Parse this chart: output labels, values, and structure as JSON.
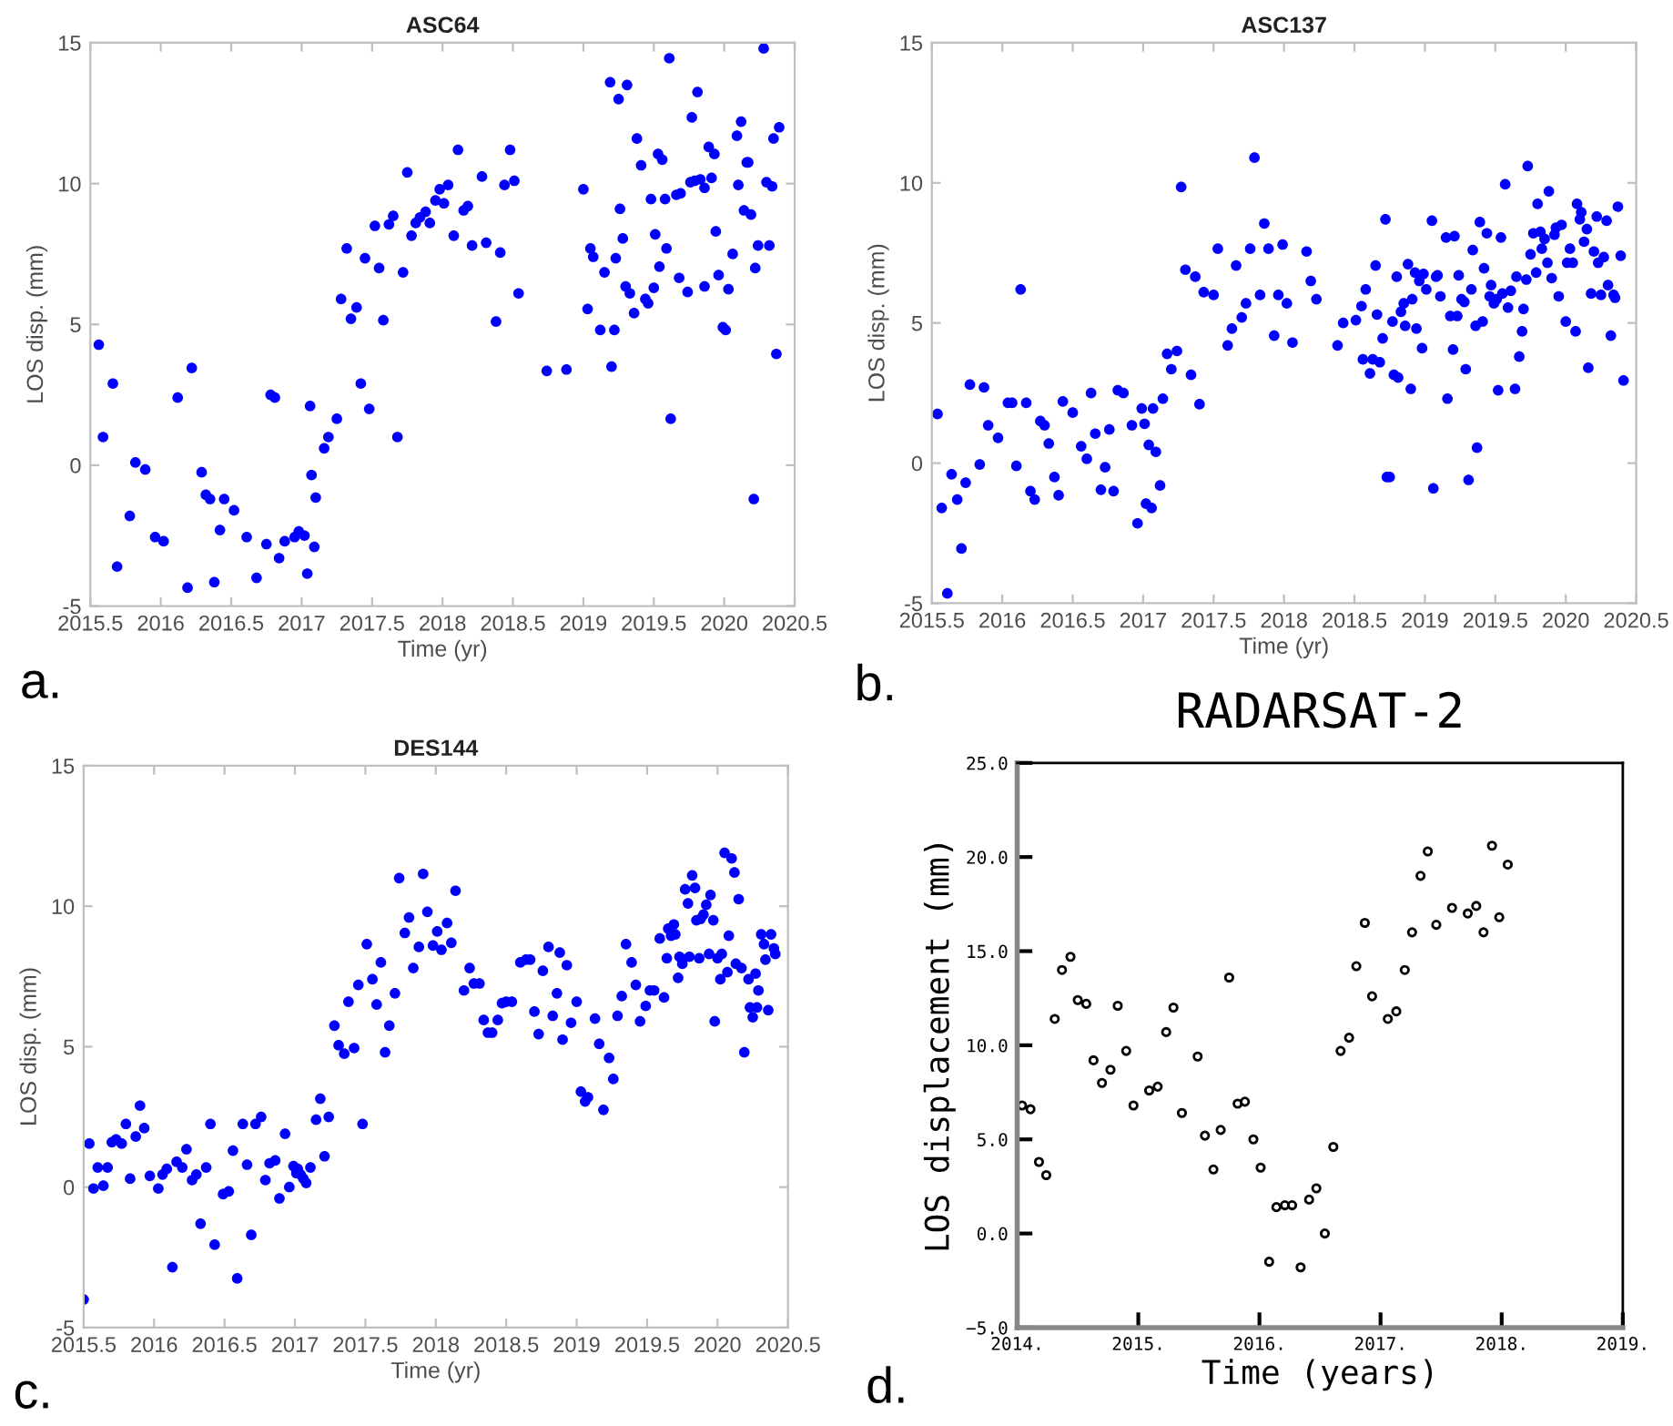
{
  "chart_data": [
    {
      "type": "scatter",
      "title": "ASC64",
      "xlabel": "Time (yr)",
      "ylabel": "LOS disp. (mm)",
      "annotations": [
        "a."
      ],
      "marker": "circle",
      "grid": false,
      "xlim": [
        2015.5,
        2020.5
      ],
      "ylim": [
        -5,
        15
      ],
      "xticks": [
        2015.5,
        2016,
        2016.5,
        2017,
        2017.5,
        2018,
        2018.5,
        2019,
        2019.5,
        2020,
        2020.5
      ],
      "yticks": [
        -5,
        0,
        5,
        10,
        15
      ],
      "series": [
        {
          "color": "#0000ff",
          "x": [
            2015.56,
            2015.59,
            2015.66,
            2015.69,
            2015.78,
            2015.82,
            2015.89,
            2015.96,
            2016.02,
            2016.12,
            2016.19,
            2016.22,
            2016.29,
            2016.32,
            2016.35,
            2016.38,
            2016.42,
            2016.45,
            2016.52,
            2016.61,
            2016.68,
            2016.75,
            2016.78,
            2016.81,
            2016.84,
            2016.88,
            2016.95,
            2016.98,
            2017.02,
            2017.04,
            2017.06,
            2017.07,
            2017.09,
            2017.1,
            2017.16,
            2017.19,
            2017.25,
            2017.28,
            2017.32,
            2017.35,
            2017.39,
            2017.42,
            2017.45,
            2017.48,
            2017.52,
            2017.55,
            2017.58,
            2017.62,
            2017.65,
            2017.68,
            2017.72,
            2017.75,
            2017.78,
            2017.81,
            2017.84,
            2017.88,
            2017.91,
            2017.95,
            2017.98,
            2018.01,
            2018.04,
            2018.08,
            2018.11,
            2018.15,
            2018.18,
            2018.21,
            2018.28,
            2018.31,
            2018.38,
            2018.41,
            2018.44,
            2018.48,
            2018.51,
            2018.54,
            2018.74,
            2018.88,
            2019.0,
            2019.03,
            2019.05,
            2019.07,
            2019.12,
            2019.15,
            2019.19,
            2019.2,
            2019.22,
            2019.23,
            2019.25,
            2019.26,
            2019.28,
            2019.3,
            2019.31,
            2019.33,
            2019.36,
            2019.38,
            2019.41,
            2019.44,
            2019.46,
            2019.48,
            2019.5,
            2019.51,
            2019.53,
            2019.54,
            2019.56,
            2019.58,
            2019.59,
            2019.61,
            2019.62,
            2019.66,
            2019.68,
            2019.69,
            2019.74,
            2019.76,
            2019.77,
            2019.79,
            2019.81,
            2019.83,
            2019.86,
            2019.86,
            2019.89,
            2019.91,
            2019.93,
            2019.94,
            2019.96,
            2019.99,
            2020.01,
            2020.03,
            2020.06,
            2020.09,
            2020.1,
            2020.12,
            2020.14,
            2020.16,
            2020.17,
            2020.19,
            2020.21,
            2020.22,
            2020.24,
            2020.28,
            2020.3,
            2020.32,
            2020.34,
            2020.35,
            2020.37,
            2020.39
          ],
          "values": [
            4.28,
            1.0,
            2.9,
            -3.6,
            -1.8,
            0.1,
            -0.15,
            -2.55,
            -2.7,
            2.4,
            -4.35,
            3.45,
            -0.25,
            -1.05,
            -1.2,
            -4.15,
            -2.3,
            -1.2,
            -1.6,
            -2.55,
            -4.0,
            -2.8,
            2.5,
            2.4,
            -3.3,
            -2.7,
            -2.55,
            -2.35,
            -2.5,
            -3.85,
            2.1,
            -0.35,
            -2.9,
            -1.15,
            0.6,
            1.0,
            1.65,
            5.9,
            7.7,
            5.2,
            5.6,
            2.9,
            7.35,
            2.0,
            8.5,
            7.0,
            5.15,
            8.55,
            8.85,
            1.0,
            6.85,
            10.4,
            8.15,
            8.6,
            8.8,
            9.0,
            8.6,
            9.4,
            9.8,
            9.3,
            9.95,
            8.15,
            11.2,
            9.05,
            9.2,
            7.8,
            10.25,
            7.9,
            5.1,
            7.55,
            9.95,
            11.2,
            10.1,
            6.1,
            3.35,
            3.4,
            9.8,
            5.55,
            7.7,
            7.4,
            4.8,
            6.85,
            13.6,
            3.5,
            4.8,
            7.35,
            13.0,
            9.1,
            8.05,
            6.35,
            13.5,
            6.1,
            5.4,
            11.6,
            10.65,
            5.9,
            5.75,
            9.45,
            6.3,
            8.2,
            11.05,
            7.05,
            10.85,
            9.45,
            7.7,
            14.45,
            1.65,
            9.6,
            6.65,
            9.65,
            6.15,
            10.05,
            12.35,
            10.1,
            13.25,
            10.15,
            6.35,
            9.85,
            11.3,
            10.2,
            11.05,
            8.3,
            6.75,
            4.9,
            4.8,
            6.25,
            7.5,
            11.7,
            9.95,
            12.2,
            9.05,
            10.75,
            10.75,
            8.9,
            -1.2,
            7.0,
            7.8,
            14.8,
            10.05,
            7.8,
            9.9,
            11.6,
            3.95,
            12.0
          ]
        }
      ]
    },
    {
      "type": "scatter",
      "title": "ASC137",
      "xlabel": "Time (yr)",
      "ylabel": "LOS disp. (mm)",
      "annotations": [
        "b."
      ],
      "marker": "circle",
      "grid": false,
      "xlim": [
        2015.5,
        2020.5
      ],
      "ylim": [
        -5,
        15
      ],
      "xticks": [
        2015.5,
        2016,
        2016.5,
        2017,
        2017.5,
        2018,
        2018.5,
        2019,
        2019.5,
        2020,
        2020.5
      ],
      "yticks": [
        -5,
        0,
        5,
        10,
        15
      ],
      "series": [
        {
          "color": "#0000ff",
          "x": [
            2015.54,
            2015.57,
            2015.61,
            2015.64,
            2015.68,
            2015.71,
            2015.74,
            2015.77,
            2015.84,
            2015.87,
            2015.9,
            2015.97,
            2016.04,
            2016.07,
            2016.1,
            2016.13,
            2016.17,
            2016.2,
            2016.23,
            2016.27,
            2016.3,
            2016.33,
            2016.37,
            2016.4,
            2016.43,
            2016.5,
            2016.56,
            2016.6,
            2016.63,
            2016.66,
            2016.7,
            2016.73,
            2016.76,
            2016.79,
            2016.82,
            2016.86,
            2016.92,
            2016.96,
            2016.99,
            2017.01,
            2017.02,
            2017.04,
            2017.06,
            2017.07,
            2017.09,
            2017.12,
            2017.14,
            2017.17,
            2017.2,
            2017.24,
            2017.27,
            2017.3,
            2017.34,
            2017.37,
            2017.4,
            2017.43,
            2017.5,
            2017.53,
            2017.6,
            2017.63,
            2017.66,
            2017.7,
            2017.73,
            2017.76,
            2017.79,
            2017.83,
            2017.86,
            2017.89,
            2017.93,
            2017.96,
            2017.99,
            2018.02,
            2018.06,
            2018.16,
            2018.19,
            2018.23,
            2018.38,
            2018.42,
            2018.51,
            2018.55,
            2018.56,
            2018.58,
            2018.61,
            2018.63,
            2018.65,
            2018.66,
            2018.68,
            2018.7,
            2018.72,
            2018.73,
            2018.75,
            2018.77,
            2018.78,
            2018.8,
            2018.81,
            2018.83,
            2018.85,
            2018.86,
            2018.88,
            2018.9,
            2018.91,
            2018.93,
            2018.94,
            2018.96,
            2018.98,
            2018.99,
            2019.01,
            2019.05,
            2019.06,
            2019.08,
            2019.09,
            2019.11,
            2019.15,
            2019.16,
            2019.18,
            2019.2,
            2019.21,
            2019.23,
            2019.24,
            2019.26,
            2019.28,
            2019.29,
            2019.31,
            2019.33,
            2019.34,
            2019.36,
            2019.37,
            2019.39,
            2019.41,
            2019.42,
            2019.44,
            2019.46,
            2019.47,
            2019.49,
            2019.51,
            2019.52,
            2019.54,
            2019.55,
            2019.57,
            2019.59,
            2019.61,
            2019.64,
            2019.65,
            2019.67,
            2019.69,
            2019.7,
            2019.72,
            2019.73,
            2019.75,
            2019.77,
            2019.79,
            2019.8,
            2019.82,
            2019.83,
            2019.85,
            2019.87,
            2019.88,
            2019.9,
            2019.92,
            2019.93,
            2019.95,
            2019.97,
            2020.0,
            2020.01,
            2020.03,
            2020.05,
            2020.07,
            2020.08,
            2020.1,
            2020.11,
            2020.13,
            2020.15,
            2020.16,
            2020.18,
            2020.2,
            2020.22,
            2020.23,
            2020.25,
            2020.27,
            2020.29,
            2020.3,
            2020.32,
            2020.34,
            2020.35,
            2020.37,
            2020.39,
            2020.41
          ],
          "values": [
            1.75,
            -1.6,
            -4.65,
            -0.4,
            -1.3,
            -3.05,
            -0.7,
            2.8,
            -0.05,
            2.7,
            1.35,
            0.9,
            2.15,
            2.15,
            -0.1,
            6.2,
            2.15,
            -1.0,
            -1.3,
            1.5,
            1.35,
            0.7,
            -0.5,
            -1.15,
            2.2,
            1.8,
            0.6,
            0.15,
            2.5,
            1.05,
            -0.95,
            -0.15,
            1.2,
            -1.0,
            2.6,
            2.5,
            1.35,
            -2.15,
            1.95,
            1.4,
            -1.45,
            0.65,
            -1.6,
            1.95,
            0.4,
            -0.8,
            2.3,
            3.9,
            3.35,
            4.0,
            9.85,
            6.9,
            3.15,
            6.65,
            2.1,
            6.1,
            6.0,
            7.65,
            4.2,
            4.8,
            7.05,
            5.2,
            5.7,
            7.65,
            10.9,
            6.0,
            8.55,
            7.65,
            4.55,
            6.0,
            7.8,
            5.7,
            4.3,
            7.55,
            6.5,
            5.85,
            4.2,
            5.0,
            5.1,
            5.6,
            3.7,
            6.2,
            3.2,
            3.7,
            7.05,
            5.3,
            3.6,
            4.45,
            8.7,
            -0.5,
            -0.5,
            5.05,
            3.15,
            6.65,
            3.05,
            5.4,
            5.7,
            4.9,
            7.1,
            2.65,
            5.85,
            6.8,
            4.8,
            6.5,
            4.1,
            6.75,
            6.2,
            8.65,
            -0.9,
            6.65,
            6.7,
            5.95,
            8.05,
            2.3,
            5.25,
            4.05,
            8.1,
            5.25,
            6.7,
            5.85,
            5.75,
            3.35,
            -0.6,
            6.2,
            7.6,
            4.9,
            0.55,
            8.6,
            5.05,
            6.95,
            8.2,
            5.95,
            6.35,
            5.7,
            5.85,
            2.6,
            8.05,
            6.05,
            9.95,
            5.55,
            6.15,
            2.65,
            6.65,
            3.8,
            4.7,
            5.5,
            6.55,
            10.6,
            7.45,
            8.2,
            6.8,
            9.25,
            8.25,
            7.65,
            8.0,
            7.15,
            9.7,
            6.6,
            8.15,
            8.4,
            5.95,
            8.5,
            5.05,
            7.15,
            7.65,
            7.15,
            4.7,
            9.25,
            8.7,
            8.95,
            7.9,
            8.35,
            3.4,
            6.05,
            7.55,
            8.8,
            7.15,
            6.0,
            7.35,
            8.65,
            6.35,
            4.55,
            6.0,
            5.9,
            9.15,
            7.4,
            2.95
          ]
        }
      ]
    },
    {
      "type": "scatter",
      "title": "DES144",
      "xlabel": "Time (yr)",
      "ylabel": "LOS disp. (mm)",
      "annotations": [
        "c."
      ],
      "marker": "circle",
      "grid": false,
      "xlim": [
        2015.5,
        2020.5
      ],
      "ylim": [
        -5,
        15
      ],
      "xticks": [
        2015.5,
        2016,
        2016.5,
        2017,
        2017.5,
        2018,
        2018.5,
        2019,
        2019.5,
        2020,
        2020.5
      ],
      "yticks": [
        -5,
        0,
        5,
        10,
        15
      ],
      "series": [
        {
          "color": "#0000ff",
          "x": [
            2015.5,
            2015.54,
            2015.57,
            2015.6,
            2015.64,
            2015.67,
            2015.7,
            2015.73,
            2015.77,
            2015.8,
            2015.83,
            2015.87,
            2015.9,
            2015.93,
            2015.97,
            2016.03,
            2016.06,
            2016.09,
            2016.13,
            2016.16,
            2016.2,
            2016.23,
            2016.27,
            2016.3,
            2016.33,
            2016.37,
            2016.4,
            2016.43,
            2016.49,
            2016.53,
            2016.56,
            2016.59,
            2016.63,
            2016.66,
            2016.69,
            2016.72,
            2016.76,
            2016.79,
            2016.82,
            2016.86,
            2016.89,
            2016.93,
            2016.96,
            2016.99,
            2017.01,
            2017.02,
            2017.04,
            2017.06,
            2017.08,
            2017.11,
            2017.15,
            2017.18,
            2017.21,
            2017.24,
            2017.28,
            2017.31,
            2017.35,
            2017.38,
            2017.42,
            2017.45,
            2017.48,
            2017.51,
            2017.55,
            2017.58,
            2017.61,
            2017.64,
            2017.67,
            2017.71,
            2017.74,
            2017.78,
            2017.81,
            2017.84,
            2017.88,
            2017.91,
            2017.94,
            2017.98,
            2018.01,
            2018.04,
            2018.08,
            2018.11,
            2018.14,
            2018.2,
            2018.24,
            2018.27,
            2018.31,
            2018.34,
            2018.37,
            2018.4,
            2018.44,
            2018.47,
            2018.5,
            2018.54,
            2018.6,
            2018.64,
            2018.67,
            2018.7,
            2018.73,
            2018.76,
            2018.8,
            2018.83,
            2018.86,
            2018.88,
            2018.9,
            2018.93,
            2018.96,
            2019.0,
            2019.03,
            2019.06,
            2019.08,
            2019.13,
            2019.16,
            2019.19,
            2019.23,
            2019.26,
            2019.29,
            2019.32,
            2019.35,
            2019.39,
            2019.42,
            2019.45,
            2019.49,
            2019.52,
            2019.55,
            2019.59,
            2019.62,
            2019.64,
            2019.65,
            2019.67,
            2019.69,
            2019.7,
            2019.72,
            2019.73,
            2019.75,
            2019.77,
            2019.79,
            2019.8,
            2019.82,
            2019.84,
            2019.85,
            2019.87,
            2019.88,
            2019.9,
            2019.92,
            2019.94,
            2019.95,
            2019.97,
            2019.98,
            2020.0,
            2020.02,
            2020.03,
            2020.05,
            2020.07,
            2020.08,
            2020.1,
            2020.12,
            2020.13,
            2020.15,
            2020.17,
            2020.19,
            2020.22,
            2020.23,
            2020.25,
            2020.27,
            2020.28,
            2020.29,
            2020.31,
            2020.33,
            2020.34,
            2020.36,
            2020.38,
            2020.4,
            2020.41
          ],
          "values": [
            -4.0,
            1.55,
            -0.05,
            0.7,
            0.05,
            0.7,
            1.6,
            1.7,
            1.55,
            2.25,
            0.3,
            1.8,
            2.9,
            2.1,
            0.4,
            -0.05,
            0.45,
            0.65,
            -2.85,
            0.9,
            0.7,
            1.35,
            0.25,
            0.45,
            -1.3,
            0.7,
            2.25,
            -2.05,
            -0.25,
            -0.15,
            1.3,
            -3.25,
            2.25,
            0.8,
            -1.7,
            2.25,
            2.5,
            0.25,
            0.85,
            0.95,
            -0.4,
            1.9,
            0.0,
            0.75,
            0.5,
            0.65,
            0.45,
            0.3,
            0.15,
            0.7,
            2.4,
            3.15,
            1.1,
            2.5,
            5.75,
            5.05,
            4.75,
            6.6,
            4.95,
            7.2,
            2.25,
            8.65,
            7.4,
            6.5,
            8.0,
            4.8,
            5.75,
            6.9,
            11.0,
            9.05,
            9.6,
            7.8,
            8.55,
            11.15,
            9.8,
            8.6,
            9.1,
            8.45,
            9.4,
            8.7,
            10.55,
            7.0,
            7.8,
            7.25,
            7.25,
            5.95,
            5.5,
            5.5,
            5.95,
            6.55,
            6.6,
            6.6,
            8.0,
            8.1,
            8.1,
            6.25,
            5.45,
            7.7,
            8.55,
            6.1,
            6.9,
            8.35,
            5.25,
            7.9,
            5.85,
            6.6,
            3.4,
            3.05,
            3.2,
            6.0,
            5.1,
            2.75,
            4.6,
            3.85,
            6.1,
            6.8,
            8.65,
            8.0,
            7.2,
            5.9,
            6.45,
            7.0,
            7.0,
            8.85,
            6.75,
            8.15,
            9.2,
            8.95,
            9.35,
            9.0,
            7.45,
            8.2,
            7.95,
            10.6,
            10.1,
            8.2,
            11.1,
            10.65,
            9.5,
            8.15,
            9.55,
            9.7,
            10.05,
            8.3,
            10.4,
            9.5,
            5.9,
            8.15,
            7.4,
            8.3,
            11.9,
            7.65,
            8.95,
            11.7,
            11.2,
            7.95,
            10.25,
            7.8,
            4.8,
            7.4,
            6.4,
            6.05,
            7.6,
            6.4,
            7.0,
            9.0,
            8.65,
            8.1,
            6.3,
            9.0,
            8.5,
            8.3
          ]
        }
      ]
    },
    {
      "type": "scatter",
      "title": "RADARSAT-2",
      "xlabel": "Time (years)",
      "ylabel": "LOS displacement (mm)",
      "annotations": [
        "d."
      ],
      "marker": "circle",
      "grid": false,
      "xlim": [
        2014,
        2019
      ],
      "ylim": [
        -5,
        25
      ],
      "xticks": [
        {
          "value": 2014,
          "label": "2014."
        },
        {
          "value": 2015,
          "label": "2015."
        },
        {
          "value": 2016,
          "label": "2016."
        },
        {
          "value": 2017,
          "label": "2017."
        },
        {
          "value": 2018,
          "label": "2018."
        },
        {
          "value": 2019,
          "label": "2019."
        }
      ],
      "yticks": [
        {
          "value": -5,
          "label": "−5.0"
        },
        {
          "value": 0,
          "label": "0.0"
        },
        {
          "value": 5,
          "label": "5.0"
        },
        {
          "value": 10,
          "label": "10.0"
        },
        {
          "value": 15,
          "label": "15.0"
        },
        {
          "value": 20,
          "label": "20.0"
        },
        {
          "value": 25,
          "label": "25.0"
        }
      ],
      "series": [
        {
          "color": "#000000",
          "x": [
            2014.04,
            2014.11,
            2014.18,
            2014.24,
            2014.31,
            2014.37,
            2014.44,
            2014.5,
            2014.57,
            2014.63,
            2014.7,
            2014.77,
            2014.83,
            2014.9,
            2014.96,
            2015.09,
            2015.16,
            2015.23,
            2015.29,
            2015.36,
            2015.49,
            2015.55,
            2015.62,
            2015.68,
            2015.75,
            2015.82,
            2015.88,
            2015.95,
            2016.01,
            2016.08,
            2016.14,
            2016.21,
            2016.27,
            2016.34,
            2016.41,
            2016.47,
            2016.54,
            2016.61,
            2016.67,
            2016.74,
            2016.8,
            2016.87,
            2016.93,
            2017.06,
            2017.13,
            2017.2,
            2017.26,
            2017.33,
            2017.39,
            2017.46,
            2017.59,
            2017.72,
            2017.79,
            2017.85,
            2017.92,
            2017.98,
            2018.05
          ],
          "values": [
            6.8,
            6.6,
            3.8,
            3.1,
            11.4,
            14.0,
            14.7,
            12.4,
            12.2,
            9.2,
            8.0,
            8.7,
            12.1,
            9.7,
            6.8,
            7.6,
            7.8,
            10.7,
            12.0,
            6.4,
            9.4,
            5.2,
            3.4,
            5.5,
            13.6,
            6.9,
            7.0,
            5.0,
            3.5,
            -1.5,
            1.4,
            1.5,
            1.5,
            -1.8,
            1.8,
            2.4,
            0.0,
            4.6,
            9.7,
            10.4,
            14.2,
            16.5,
            12.6,
            11.4,
            11.8,
            14.0,
            16.0,
            19.0,
            20.3,
            16.4,
            17.3,
            17.0,
            17.4,
            16.0,
            20.6,
            16.8,
            19.6
          ]
        }
      ]
    }
  ]
}
